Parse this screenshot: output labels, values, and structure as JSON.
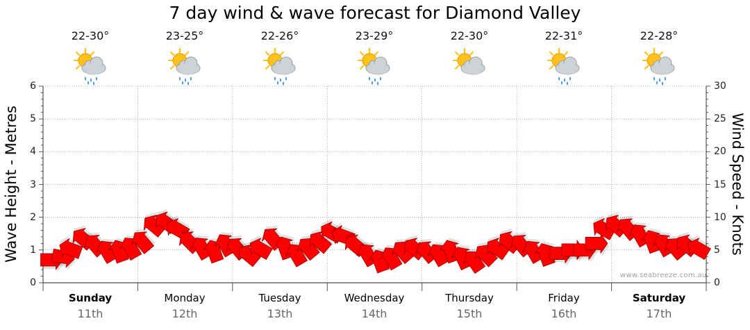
{
  "title": "7 day wind & wave forecast for Diamond Valley",
  "watermark": "www.seabreeze.com.au",
  "colors": {
    "wind_arrow": "#ff0000",
    "wind_arrow_edge": "#8b0000",
    "wave_area": "#ffffff",
    "sun": "#ffc21a",
    "cloud": "#cfd3d8",
    "rain": "#3a8fd8"
  },
  "icons": [
    "sun-cloud-rain-icon",
    "sun-cloud-rain-icon",
    "sun-cloud-rain-icon",
    "sun-cloud-rain-icon",
    "sun-cloud-icon",
    "sun-cloud-rain-icon",
    "sun-cloud-rain-icon"
  ],
  "days": [
    {
      "name": "Sunday",
      "date": "11th",
      "temp": "22-30°",
      "bold": true
    },
    {
      "name": "Monday",
      "date": "12th",
      "temp": "23-25°",
      "bold": false
    },
    {
      "name": "Tuesday",
      "date": "13th",
      "temp": "22-26°",
      "bold": false
    },
    {
      "name": "Wednesday",
      "date": "14th",
      "temp": "23-29°",
      "bold": false
    },
    {
      "name": "Thursday",
      "date": "15th",
      "temp": "22-30°",
      "bold": false
    },
    {
      "name": "Friday",
      "date": "16th",
      "temp": "22-31°",
      "bold": false
    },
    {
      "name": "Saturday",
      "date": "17th",
      "temp": "22-28°",
      "bold": true
    }
  ],
  "chart_data": {
    "type": "line",
    "title": "7 day wind & wave forecast for Diamond Valley",
    "ylabel": "Wave Height - Metres",
    "y2label": "Wind Speed - Knots",
    "ylim": [
      0,
      6
    ],
    "y2lim": [
      0,
      30
    ],
    "yticks": [
      "0",
      "1",
      "2",
      "3",
      "4",
      "5",
      "6"
    ],
    "y2ticks": [
      "0",
      "5",
      "10",
      "15",
      "20",
      "25",
      "30"
    ],
    "x_unit": "day index (0 = Sunday 11th start, 7 = end of Saturday 17th)",
    "grid": true,
    "legend": "none",
    "series": [
      {
        "kind": "wind_arrows",
        "x": [
          0.0,
          0.125,
          0.25,
          0.375,
          0.5,
          0.625,
          0.75,
          0.875,
          1.0,
          1.125,
          1.25,
          1.375,
          1.5,
          1.625,
          1.75,
          1.875,
          2.0,
          2.125,
          2.25,
          2.375,
          2.5,
          2.625,
          2.75,
          2.875,
          3.0,
          3.125,
          3.25,
          3.375,
          3.5,
          3.625,
          3.75,
          3.875,
          4.0,
          4.125,
          4.25,
          4.375,
          4.5,
          4.625,
          4.75,
          4.875,
          5.0,
          5.125,
          5.25,
          5.375,
          5.5,
          5.625,
          5.75,
          5.875,
          6.0,
          6.125,
          6.25,
          6.375,
          6.5,
          6.625,
          6.75,
          6.875
        ],
        "speed_knots": [
          3.5,
          4.0,
          5.0,
          6.5,
          5.5,
          4.5,
          4.5,
          5.0,
          6.0,
          8.5,
          9.0,
          8.0,
          6.0,
          5.0,
          4.5,
          5.5,
          5.0,
          4.0,
          5.0,
          6.5,
          5.0,
          4.0,
          5.0,
          6.0,
          7.5,
          7.0,
          5.5,
          4.0,
          3.0,
          3.5,
          4.5,
          5.0,
          4.5,
          4.0,
          4.5,
          3.5,
          3.0,
          4.0,
          5.0,
          6.0,
          5.5,
          4.5,
          4.0,
          4.5,
          5.0,
          5.0,
          6.0,
          8.0,
          8.5,
          8.0,
          7.0,
          6.0,
          5.5,
          5.0,
          5.5,
          5.0
        ],
        "direction_deg": [
          0,
          10,
          200,
          220,
          230,
          240,
          250,
          240,
          230,
          220,
          215,
          210,
          225,
          240,
          250,
          240,
          230,
          220,
          210,
          230,
          250,
          240,
          230,
          220,
          210,
          200,
          220,
          240,
          250,
          240,
          230,
          220,
          230,
          240,
          250,
          245,
          235,
          225,
          215,
          220,
          230,
          240,
          250,
          0,
          0,
          0,
          0,
          210,
          220,
          230,
          240,
          250,
          240,
          230,
          220,
          210
        ]
      }
    ]
  }
}
